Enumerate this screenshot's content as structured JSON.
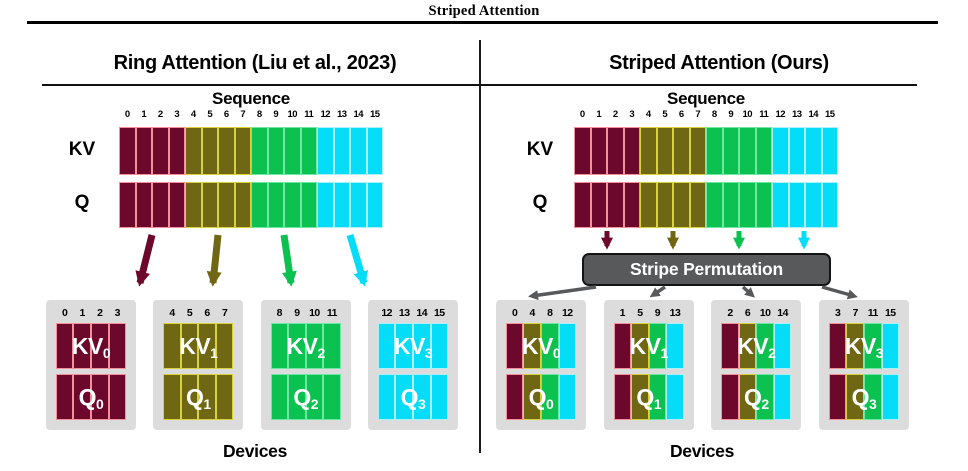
{
  "header": {
    "title": "Striped Attention"
  },
  "colors": {
    "groups": [
      {
        "name": "maroon",
        "fill": "#6c082c",
        "border": "#f2919c"
      },
      {
        "name": "olive",
        "fill": "#6f6713",
        "border": "#d8d23e"
      },
      {
        "name": "green",
        "fill": "#0bc150",
        "border": "#6fe7a4"
      },
      {
        "name": "cyan",
        "fill": "#04dcf8",
        "border": "#adf0fa"
      }
    ],
    "device_box_bg": "#dcdcdc",
    "permutation_fill": "#58595b",
    "arrow_gray": "#58595b"
  },
  "sequence": {
    "ticks": [
      "0",
      "1",
      "2",
      "3",
      "4",
      "5",
      "6",
      "7",
      "8",
      "9",
      "10",
      "11",
      "12",
      "13",
      "14",
      "15"
    ],
    "cell_groups": [
      0,
      0,
      0,
      0,
      1,
      1,
      1,
      1,
      2,
      2,
      2,
      2,
      3,
      3,
      3,
      3
    ]
  },
  "panels": [
    {
      "title": "Ring Attention (Liu et al., 2023)",
      "sequence_label": "Sequence",
      "kv_label": "KV",
      "q_label": "Q",
      "devices_label": "Devices",
      "devices": [
        {
          "indices": [
            "0",
            "1",
            "2",
            "3"
          ],
          "groups": [
            0,
            0,
            0,
            0
          ],
          "kv": "KV",
          "q": "Q",
          "sub": "0"
        },
        {
          "indices": [
            "4",
            "5",
            "6",
            "7"
          ],
          "groups": [
            1,
            1,
            1,
            1
          ],
          "kv": "KV",
          "q": "Q",
          "sub": "1"
        },
        {
          "indices": [
            "8",
            "9",
            "10",
            "11"
          ],
          "groups": [
            2,
            2,
            2,
            2
          ],
          "kv": "KV",
          "q": "Q",
          "sub": "2"
        },
        {
          "indices": [
            "12",
            "13",
            "14",
            "15"
          ],
          "groups": [
            3,
            3,
            3,
            3
          ],
          "kv": "KV",
          "q": "Q",
          "sub": "3"
        }
      ]
    },
    {
      "title": "Striped Attention (Ours)",
      "sequence_label": "Sequence",
      "kv_label": "KV",
      "q_label": "Q",
      "devices_label": "Devices",
      "permutation_label": "Stripe Permutation",
      "devices": [
        {
          "indices": [
            "0",
            "4",
            "8",
            "12"
          ],
          "groups": [
            0,
            1,
            2,
            3
          ],
          "kv": "KV",
          "q": "Q",
          "sub": "0"
        },
        {
          "indices": [
            "1",
            "5",
            "9",
            "13"
          ],
          "groups": [
            0,
            1,
            2,
            3
          ],
          "kv": "KV",
          "q": "Q",
          "sub": "1"
        },
        {
          "indices": [
            "2",
            "6",
            "10",
            "14"
          ],
          "groups": [
            0,
            1,
            2,
            3
          ],
          "kv": "KV",
          "q": "Q",
          "sub": "2"
        },
        {
          "indices": [
            "3",
            "7",
            "11",
            "15"
          ],
          "groups": [
            0,
            1,
            2,
            3
          ],
          "kv": "KV",
          "q": "Q",
          "sub": "3"
        }
      ]
    }
  ]
}
